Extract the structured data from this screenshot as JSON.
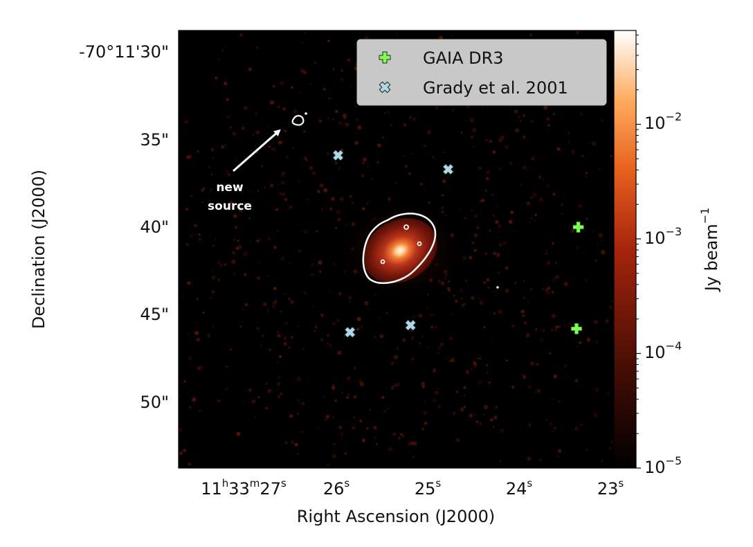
{
  "chart_data": {
    "type": "scatter",
    "title": "",
    "xlabel": "Right Ascension (J2000)",
    "ylabel": "Declination (J2000)",
    "x_ticks": [
      {
        "value": 27,
        "label_main": "11",
        "label_parts": [
          "h",
          "33",
          "m",
          "27",
          "s"
        ]
      },
      {
        "value": 26,
        "label_main": "26",
        "label_parts": [
          "s"
        ]
      },
      {
        "value": 25,
        "label_main": "25",
        "label_parts": [
          "s"
        ]
      },
      {
        "value": 24,
        "label_main": "24",
        "label_parts": [
          "s"
        ]
      },
      {
        "value": 23,
        "label_main": "23",
        "label_parts": [
          "s"
        ]
      }
    ],
    "y_ticks": [
      {
        "value": 30,
        "label": "-70°11'30\""
      },
      {
        "value": 35,
        "label": "35\""
      },
      {
        "value": 40,
        "label": "40\""
      },
      {
        "value": 45,
        "label": "45\""
      },
      {
        "value": 50,
        "label": "50\""
      }
    ],
    "xlim_seconds": [
      27.55,
      22.8
    ],
    "ylim_arcsec": [
      28.8,
      53.9
    ],
    "colorbar": {
      "label": "Jy beam",
      "label_exponent": "−1",
      "scale": "log",
      "range": [
        1e-05,
        0.07
      ],
      "ticks": [
        {
          "value": 0.01,
          "base": "10",
          "exp": "−2"
        },
        {
          "value": 0.001,
          "base": "10",
          "exp": "−3"
        },
        {
          "value": 0.0001,
          "base": "10",
          "exp": "−4"
        },
        {
          "value": 1e-05,
          "base": "10",
          "exp": "−5"
        }
      ],
      "colormap": "gist_heat"
    },
    "series": [
      {
        "name": "GAIA DR3",
        "marker": "plus",
        "color": "#7dff4f",
        "points": [
          {
            "x": 23.35,
            "y": 40.0
          },
          {
            "x": 23.37,
            "y": 45.8
          }
        ]
      },
      {
        "name": "Grady et al. 2001",
        "marker": "x",
        "color": "#add8e6",
        "points": [
          {
            "x": 25.97,
            "y": 35.9
          },
          {
            "x": 24.77,
            "y": 36.7
          },
          {
            "x": 25.84,
            "y": 46.0
          },
          {
            "x": 25.18,
            "y": 45.6
          }
        ]
      }
    ],
    "legend": {
      "placement": "top-right"
    },
    "main_source": {
      "x": 25.3,
      "y": 41.3
    },
    "new_source": {
      "x": 26.43,
      "y": 33.9
    },
    "annotation": {
      "text_line1": "new",
      "text_line2": "source",
      "color": "#ffffff"
    },
    "contour_color": "#ffffff"
  }
}
